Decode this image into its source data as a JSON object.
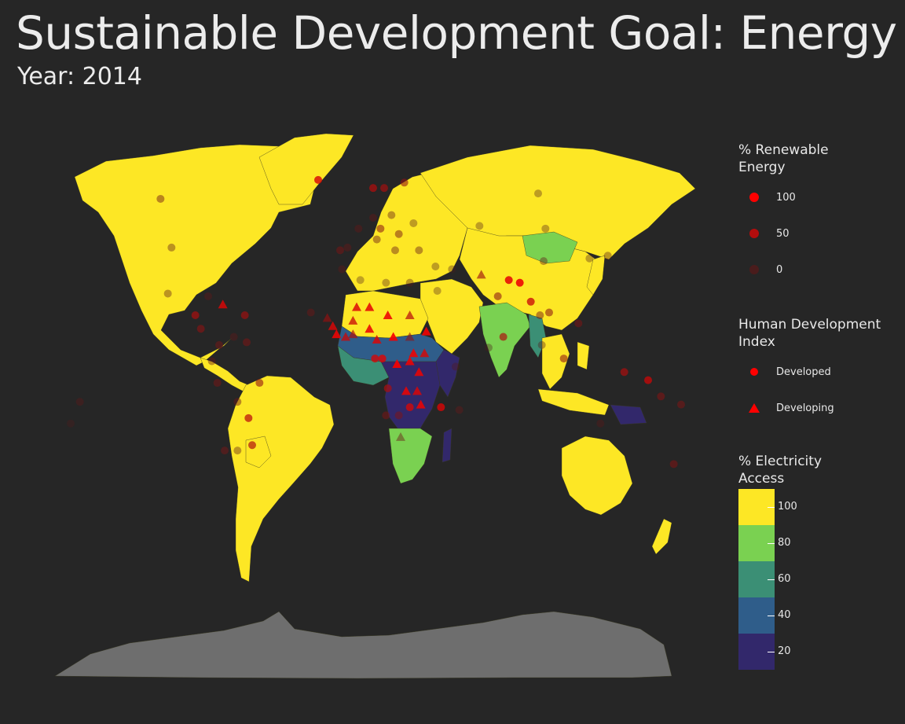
{
  "title": "Sustainable Development Goal: Energy",
  "subtitle": "Year: 2014",
  "colors": {
    "background": "#262626",
    "antarctica": "#6e6e6e",
    "no_data": "#6e6e6e",
    "marker": "#ff0000",
    "scale": [
      "#fde725",
      "#7ad151",
      "#3b8f75",
      "#2f5d8a",
      "#32286b"
    ]
  },
  "legends": {
    "renewable": {
      "title_line1": "% Renewable",
      "title_line2": "Energy",
      "items": [
        {
          "label": "100",
          "value": 100
        },
        {
          "label": "50",
          "value": 50
        },
        {
          "label": "0",
          "value": 0
        }
      ]
    },
    "hdi": {
      "title_line1": "Human Development",
      "title_line2": "Index",
      "items": [
        {
          "label": "Developed",
          "shape": "circle"
        },
        {
          "label": "Developing",
          "shape": "triangle"
        }
      ]
    },
    "electricity": {
      "title_line1": "% Electricity",
      "title_line2": "Access",
      "items": [
        {
          "label": "100",
          "value": 100
        },
        {
          "label": "80",
          "value": 80
        },
        {
          "label": "60",
          "value": 60
        },
        {
          "label": "40",
          "value": 40
        },
        {
          "label": "20",
          "value": 20
        }
      ]
    }
  },
  "regions": [
    {
      "name": "North America",
      "access": 100
    },
    {
      "name": "Greenland",
      "access": 100
    },
    {
      "name": "Central America",
      "access": 100
    },
    {
      "name": "South America",
      "access": 100
    },
    {
      "name": "Bolivia",
      "access": 90
    },
    {
      "name": "Europe",
      "access": 100
    },
    {
      "name": "Russia",
      "access": 100
    },
    {
      "name": "China",
      "access": 100
    },
    {
      "name": "Mongolia",
      "access": 85
    },
    {
      "name": "North Africa",
      "access": 100
    },
    {
      "name": "Sahel",
      "access": 35
    },
    {
      "name": "West Africa",
      "access": 55
    },
    {
      "name": "Central Africa",
      "access": 15
    },
    {
      "name": "East Africa",
      "access": 25
    },
    {
      "name": "Southern Africa",
      "access": 85
    },
    {
      "name": "Madagascar",
      "access": 15
    },
    {
      "name": "Middle East",
      "access": 100
    },
    {
      "name": "India",
      "access": 80
    },
    {
      "name": "Myanmar",
      "access": 50
    },
    {
      "name": "Southeast Asia",
      "access": 95
    },
    {
      "name": "Philippines",
      "access": 90
    },
    {
      "name": "Indonesia",
      "access": 95
    },
    {
      "name": "Papua New Guinea",
      "access": 20
    },
    {
      "name": "Australia",
      "access": 100
    },
    {
      "name": "New Zealand",
      "access": 100
    },
    {
      "name": "Japan",
      "access": 100
    },
    {
      "name": "Antarctica",
      "access": null
    }
  ],
  "markers": [
    {
      "lon": -100,
      "lat": 40,
      "renewable": 10,
      "hdi": "Developed"
    },
    {
      "lon": -106,
      "lat": 58,
      "renewable": 20,
      "hdi": "Developed"
    },
    {
      "lon": -102,
      "lat": 23,
      "renewable": 9,
      "hdi": "Developed"
    },
    {
      "lon": -20,
      "lat": 65,
      "renewable": 77,
      "hdi": "Developed"
    },
    {
      "lon": 10,
      "lat": 62,
      "renewable": 58,
      "hdi": "Developed"
    },
    {
      "lon": 16,
      "lat": 62,
      "renewable": 52,
      "hdi": "Developed"
    },
    {
      "lon": 27,
      "lat": 64,
      "renewable": 39,
      "hdi": "Developed"
    },
    {
      "lon": 2,
      "lat": 47,
      "renewable": 14,
      "hdi": "Developed"
    },
    {
      "lon": 10,
      "lat": 51,
      "renewable": 14,
      "hdi": "Developed"
    },
    {
      "lon": 14,
      "lat": 47,
      "renewable": 33,
      "hdi": "Developed"
    },
    {
      "lon": 20,
      "lat": 52,
      "renewable": 12,
      "hdi": "Developed"
    },
    {
      "lon": 12,
      "lat": 43,
      "renewable": 17,
      "hdi": "Developed"
    },
    {
      "lon": -4,
      "lat": 40,
      "renewable": 16,
      "hdi": "Developed"
    },
    {
      "lon": -8,
      "lat": 39,
      "renewable": 27,
      "hdi": "Developed"
    },
    {
      "lon": 24,
      "lat": 45,
      "renewable": 24,
      "hdi": "Developed"
    },
    {
      "lon": 22,
      "lat": 39,
      "renewable": 15,
      "hdi": "Developed"
    },
    {
      "lon": 32,
      "lat": 49,
      "renewable": 4,
      "hdi": "Developed"
    },
    {
      "lon": 35,
      "lat": 39,
      "renewable": 13,
      "hdi": "Developed"
    },
    {
      "lon": 100,
      "lat": 60,
      "renewable": 3,
      "hdi": "Developed"
    },
    {
      "lon": 68,
      "lat": 48,
      "renewable": 2,
      "hdi": "Developed"
    },
    {
      "lon": 103,
      "lat": 35,
      "renewable": 12,
      "hdi": "Developed"
    },
    {
      "lon": 104,
      "lat": 47,
      "renewable": 3,
      "hdi": "Developed"
    },
    {
      "lon": 53,
      "lat": 32,
      "renewable": 1,
      "hdi": "Developed"
    },
    {
      "lon": 45,
      "lat": 24,
      "renewable": 0,
      "hdi": "Developed"
    },
    {
      "lon": 44,
      "lat": 33,
      "renewable": 1,
      "hdi": "Developed"
    },
    {
      "lon": 3,
      "lat": 28,
      "renewable": 0,
      "hdi": "Developed"
    },
    {
      "lon": 17,
      "lat": 27,
      "renewable": 2,
      "hdi": "Developed"
    },
    {
      "lon": 30,
      "lat": 27,
      "renewable": 6,
      "hdi": "Developed"
    },
    {
      "lon": -7,
      "lat": 32,
      "renewable": 11,
      "hdi": "Developed"
    },
    {
      "lon": 78,
      "lat": 22,
      "renewable": 36,
      "hdi": "Developed"
    },
    {
      "lon": 69,
      "lat": 30,
      "renewable": 46,
      "hdi": "Developing"
    },
    {
      "lon": 84,
      "lat": 28,
      "renewable": 85,
      "hdi": "Developed"
    },
    {
      "lon": 90,
      "lat": 27,
      "renewable": 90,
      "hdi": "Developed"
    },
    {
      "lon": 81,
      "lat": 7,
      "renewable": 55,
      "hdi": "Developed"
    },
    {
      "lon": 96,
      "lat": 20,
      "renewable": 70,
      "hdi": "Developed"
    },
    {
      "lon": 101,
      "lat": 15,
      "renewable": 23,
      "hdi": "Developed"
    },
    {
      "lon": 106,
      "lat": 16,
      "renewable": 35,
      "hdi": "Developed"
    },
    {
      "lon": 122,
      "lat": 12,
      "renewable": 29,
      "hdi": "Developed"
    },
    {
      "lon": 114,
      "lat": -1,
      "renewable": 37,
      "hdi": "Developed"
    },
    {
      "lon": 102,
      "lat": 4,
      "renewable": 5,
      "hdi": "Developed"
    },
    {
      "lon": 147,
      "lat": -6,
      "renewable": 55,
      "hdi": "Developed"
    },
    {
      "lon": 160,
      "lat": -9,
      "renewable": 70,
      "hdi": "Developed"
    },
    {
      "lon": 134,
      "lat": -25,
      "renewable": 9,
      "hdi": "Developed"
    },
    {
      "lon": 174,
      "lat": -40,
      "renewable": 31,
      "hdi": "Developed"
    },
    {
      "lon": 138,
      "lat": 37,
      "renewable": 6,
      "hdi": "Developed"
    },
    {
      "lon": 128,
      "lat": 36,
      "renewable": 1,
      "hdi": "Developed"
    },
    {
      "lon": 178,
      "lat": -18,
      "renewable": 30,
      "hdi": "Developed"
    },
    {
      "lon": 167,
      "lat": -15,
      "renewable": 33,
      "hdi": "Developed"
    },
    {
      "lon": -60,
      "lat": 15,
      "renewable": 50,
      "hdi": "Developed"
    },
    {
      "lon": -80,
      "lat": 22,
      "renewable": 12,
      "hdi": "Developed"
    },
    {
      "lon": -72,
      "lat": 19,
      "renewable": 80,
      "hdi": "Developing"
    },
    {
      "lon": -87,
      "lat": 15,
      "renewable": 55,
      "hdi": "Developed"
    },
    {
      "lon": -84,
      "lat": 10,
      "renewable": 38,
      "hdi": "Developed"
    },
    {
      "lon": -74,
      "lat": 4,
      "renewable": 25,
      "hdi": "Developed"
    },
    {
      "lon": -66,
      "lat": 7,
      "renewable": 12,
      "hdi": "Developed"
    },
    {
      "lon": -59,
      "lat": 5,
      "renewable": 30,
      "hdi": "Developed"
    },
    {
      "lon": -78,
      "lat": -2,
      "renewable": 14,
      "hdi": "Developed"
    },
    {
      "lon": -75,
      "lat": -10,
      "renewable": 26,
      "hdi": "Developed"
    },
    {
      "lon": -52,
      "lat": -10,
      "renewable": 40,
      "hdi": "Developed"
    },
    {
      "lon": -64,
      "lat": -17,
      "renewable": 18,
      "hdi": "Developed"
    },
    {
      "lon": -58,
      "lat": -23,
      "renewable": 62,
      "hdi": "Developed"
    },
    {
      "lon": -56,
      "lat": -33,
      "renewable": 55,
      "hdi": "Developed"
    },
    {
      "lon": -64,
      "lat": -35,
      "renewable": 9,
      "hdi": "Developed"
    },
    {
      "lon": -71,
      "lat": -35,
      "renewable": 25,
      "hdi": "Developed"
    },
    {
      "lon": -150,
      "lat": -17,
      "renewable": 10,
      "hdi": "Developed"
    },
    {
      "lon": -155,
      "lat": -25,
      "renewable": 2,
      "hdi": "Developed"
    },
    {
      "lon": -24,
      "lat": 16,
      "renewable": 20,
      "hdi": "Developed"
    },
    {
      "lon": -15,
      "lat": 14,
      "renewable": 45,
      "hdi": "Developing"
    },
    {
      "lon": -12,
      "lat": 11,
      "renewable": 80,
      "hdi": "Developing"
    },
    {
      "lon": -10,
      "lat": 8,
      "renewable": 90,
      "hdi": "Developing"
    },
    {
      "lon": -5,
      "lat": 7,
      "renewable": 70,
      "hdi": "Developing"
    },
    {
      "lon": -1,
      "lat": 8,
      "renewable": 55,
      "hdi": "Developing"
    },
    {
      "lon": -1,
      "lat": 13,
      "renewable": 70,
      "hdi": "Developing"
    },
    {
      "lon": 1,
      "lat": 18,
      "renewable": 80,
      "hdi": "Developing"
    },
    {
      "lon": 8,
      "lat": 18,
      "renewable": 85,
      "hdi": "Developing"
    },
    {
      "lon": 8,
      "lat": 10,
      "renewable": 88,
      "hdi": "Developing"
    },
    {
      "lon": 18,
      "lat": 15,
      "renewable": 90,
      "hdi": "Developing"
    },
    {
      "lon": 12,
      "lat": 6,
      "renewable": 80,
      "hdi": "Developing"
    },
    {
      "lon": 21,
      "lat": 7,
      "renewable": 95,
      "hdi": "Developing"
    },
    {
      "lon": 30,
      "lat": 15,
      "renewable": 60,
      "hdi": "Developing"
    },
    {
      "lon": 39,
      "lat": 9,
      "renewable": 93,
      "hdi": "Developing"
    },
    {
      "lon": 30,
      "lat": 7,
      "renewable": 40,
      "hdi": "Developing"
    },
    {
      "lon": 38,
      "lat": 1,
      "renewable": 78,
      "hdi": "Developing"
    },
    {
      "lon": 32,
      "lat": 1,
      "renewable": 90,
      "hdi": "Developing"
    },
    {
      "lon": 23,
      "lat": -3,
      "renewable": 95,
      "hdi": "Developing"
    },
    {
      "lon": 15,
      "lat": -1,
      "renewable": 80,
      "hdi": "Developed"
    },
    {
      "lon": 11,
      "lat": -1,
      "renewable": 75,
      "hdi": "Developed"
    },
    {
      "lon": 30,
      "lat": -2,
      "renewable": 90,
      "hdi": "Developing"
    },
    {
      "lon": 35,
      "lat": -6,
      "renewable": 88,
      "hdi": "Developing"
    },
    {
      "lon": 18,
      "lat": -12,
      "renewable": 55,
      "hdi": "Developed"
    },
    {
      "lon": 28,
      "lat": -13,
      "renewable": 88,
      "hdi": "Developing"
    },
    {
      "lon": 34,
      "lat": -13,
      "renewable": 80,
      "hdi": "Developing"
    },
    {
      "lon": 36,
      "lat": -18,
      "renewable": 88,
      "hdi": "Developing"
    },
    {
      "lon": 30,
      "lat": -19,
      "renewable": 75,
      "hdi": "Developed"
    },
    {
      "lon": 24,
      "lat": -22,
      "renewable": 30,
      "hdi": "Developed"
    },
    {
      "lon": 17,
      "lat": -22,
      "renewable": 28,
      "hdi": "Developed"
    },
    {
      "lon": 25,
      "lat": -30,
      "renewable": 17,
      "hdi": "Developing"
    },
    {
      "lon": 47,
      "lat": -19,
      "renewable": 78,
      "hdi": "Developed"
    },
    {
      "lon": 57,
      "lat": -20,
      "renewable": 15,
      "hdi": "Developed"
    },
    {
      "lon": 55,
      "lat": -4,
      "renewable": 5,
      "hdi": "Developed"
    },
    {
      "lon": 73,
      "lat": 3,
      "renewable": 1,
      "hdi": "Developed"
    }
  ]
}
